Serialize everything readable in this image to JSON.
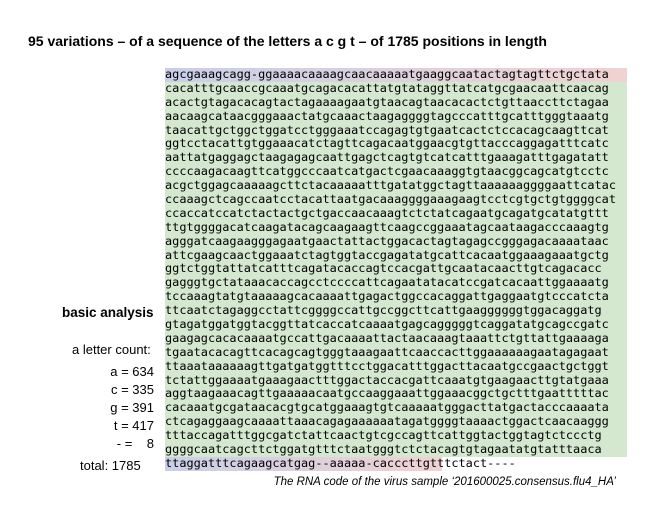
{
  "header": {
    "title": "95 variations – of a sequence of the letters a c g t – of 1785 positions in length"
  },
  "sequence": {
    "lines": [
      "agcgaaagcagg-ggaaaacaaaagcaacaaaaatgaaggcaatactagtagttctgctata",
      "cacatttgcaaccgcaaatgcagacacattatgtataggttatcatgcgaacaattcaacag",
      "acactgtagacacagtactagaaaagaatgtaacagtaacacactctgttaaccttctagaa",
      "aacaagcataacgggaaactatgcaaactaagaggggtagcccatttgcatttgggtaaatg",
      "taacattgctggctggatcctgggaaatccagagtgtgaatcactctccacagcaagttcat",
      "ggtcctacattgtggaaacatctagttcagacaatggaacgtgttacccaggagatttcatc",
      "aattatgaggagctaagagagcaattgagctcagtgtcatcatttgaaagatttgagatatt",
      "ccccaagacaagttcatggcccaatcatgactcgaacaaaggtgtaacggcagcatgtcctc",
      "acgctggagcaaaaagcttctacaaaaatttgatatggctagttaaaaaaggggaattcatac",
      "ccaaagctcagccaatcctacattaatgacaaaggggaaagaagtcctcgtgctgtggggcat",
      "ccaccatccatctactactgctgaccaacaaagtctctatcagaatgcagatgcatatgttt",
      "ttgtggggacatcaagatacagcaagaagttcaagccggaaatagcaataagacccaaagtg",
      "agggatcaagaagggagaatgaactattactggacactagtagagccgggagacaaaataac",
      "attcgaagcaactggaaatctagtggtaccgagatatgcattcacaatggaaagaaatgctg",
      "ggtctggtattatcatttcagatacaccagtccacgattgcaatacaacttgtcagacacc",
      "gagggtgctataaacaccagcctccccattcagaatatacatccgatcacaattggaaaatg",
      "tccaaagtatgtaaaaagcacaaaattgagactggccacaggattgaggaatgtcccatcta",
      "ttcaatctagaggcctattcggggccattgccggcttcattgaaggggggtggacaggatg",
      "gtagatggatggtacggttatcaccatcaaaatgagcagggggtcaggatatgcagccgatc",
      "gaagagcacacaaaatgccattgacaaaattactaacaaagtaaattctgttattgaaaaga",
      "tgaatacacagttcacagcagtgggtaaagaattcaaccacttggaaaaaagaatagagaat",
      "ttaaataaaaaagttgatgatggtttcctggacatttggacttacaatgccgaactgctggt",
      "tctattggaaaatgaaagaactttggactaccacgattcaaatgtgaagaacttgtatgaaa",
      "aggtaagaaacagttgaaaaacaatgccaaggaaattggaaacggctgctttgaatttttac",
      "cacaaatgcgataacacgtgcatggaaagtgtcaaaaatgggacttatgactacccaaaata",
      "ctcagaggaagcaaaattaaacagagaaaaaatagatggggtaaaactggactcaacaaggg",
      "tttaccagatttggcgatctattcaactgtcgccagttcattggtactggtagtctccctg",
      "ggggcaatcagcttctggatgtttctaatgggtctctacagtgtagaatatgtatttaaca",
      "ttaggatttcagaagcatgag--aaaaa-cacccttgtttctact----"
    ],
    "caption": "The RNA code of the virus sample ‘201600025.consensus.flu4_HA’"
  },
  "analysis": {
    "heading": "basic analysis",
    "subheading": "a letter count:",
    "counts": [
      "a = 634",
      "c = 335",
      "g = 391",
      "t = 417",
      "- =    8"
    ],
    "total": "total: 1785"
  }
}
